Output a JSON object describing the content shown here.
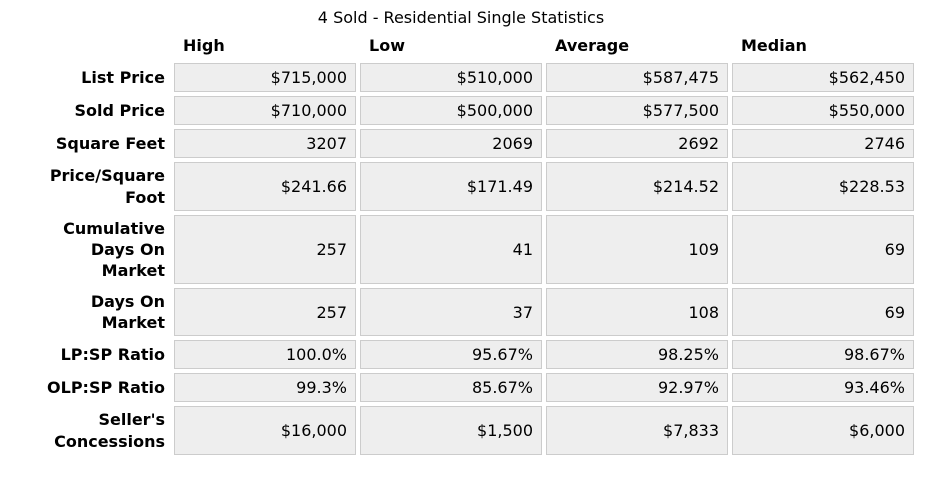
{
  "title": "4 Sold - Residential Single Statistics",
  "colors": {
    "cell_background": "#eeeeee",
    "cell_border": "#cccccc",
    "text": "#000000",
    "page_background": "#ffffff"
  },
  "chart_data": {
    "type": "table",
    "title": "4 Sold - Residential Single Statistics",
    "columns": [
      "High",
      "Low",
      "Average",
      "Median"
    ],
    "rows": [
      {
        "label": "List Price",
        "values": [
          "$715,000",
          "$510,000",
          "$587,475",
          "$562,450"
        ]
      },
      {
        "label": "Sold Price",
        "values": [
          "$710,000",
          "$500,000",
          "$577,500",
          "$550,000"
        ]
      },
      {
        "label": "Square Feet",
        "values": [
          "3207",
          "2069",
          "2692",
          "2746"
        ]
      },
      {
        "label": "Price/Square Foot",
        "values": [
          "$241.66",
          "$171.49",
          "$214.52",
          "$228.53"
        ]
      },
      {
        "label": "Cumulative Days On Market",
        "values": [
          "257",
          "41",
          "109",
          "69"
        ]
      },
      {
        "label": "Days On Market",
        "values": [
          "257",
          "37",
          "108",
          "69"
        ]
      },
      {
        "label": "LP:SP Ratio",
        "values": [
          "100.0%",
          "95.67%",
          "98.25%",
          "98.67%"
        ]
      },
      {
        "label": "OLP:SP Ratio",
        "values": [
          "99.3%",
          "85.67%",
          "92.97%",
          "93.46%"
        ]
      },
      {
        "label": "Seller's Concessions",
        "values": [
          "$16,000",
          "$1,500",
          "$7,833",
          "$6,000"
        ]
      }
    ]
  }
}
